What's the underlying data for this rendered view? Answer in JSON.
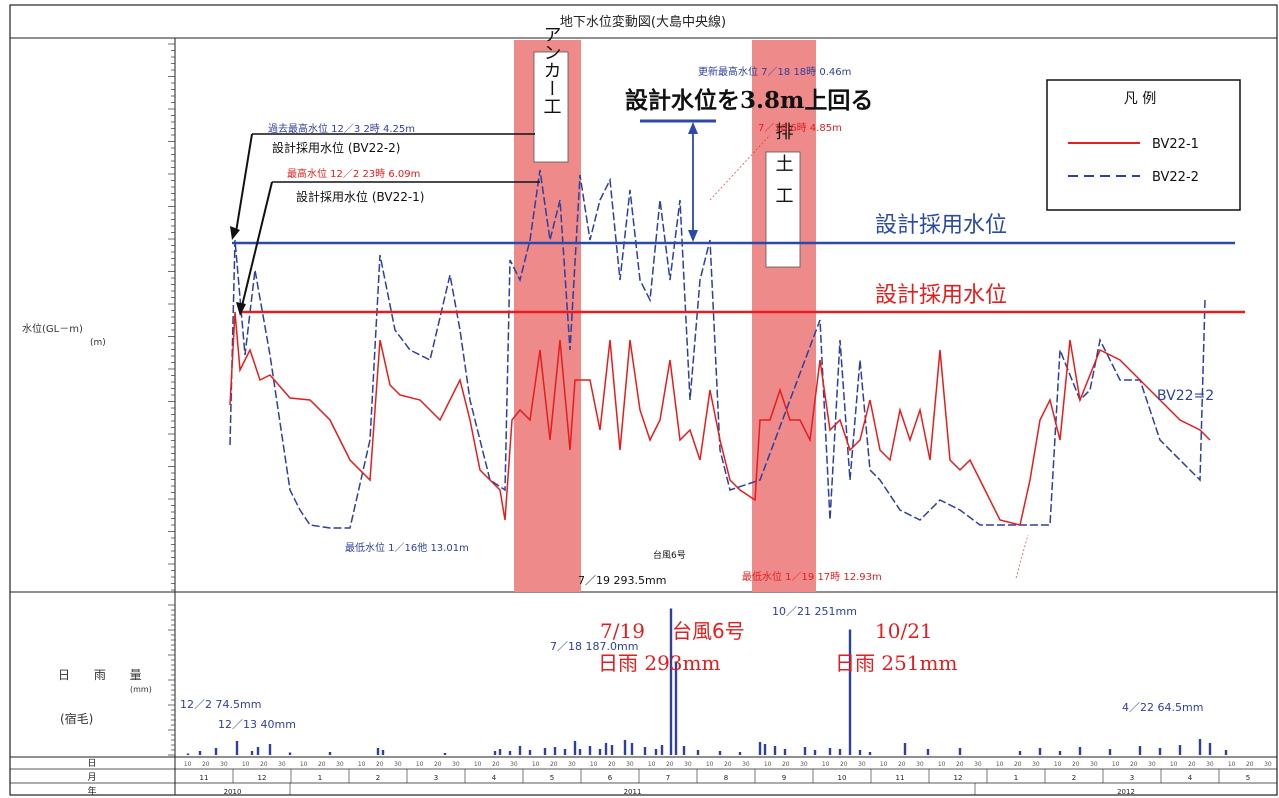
{
  "chart_data": {
    "type": "line",
    "title": "地下水位変動図(大島中央線)",
    "y_axis_label": "水位(GL－m)",
    "y_axis_unit": "(m)",
    "rain_axis_label": "日 雨 量",
    "rain_axis_unit": "(mm)",
    "rain_axis_station": "(宿毛)",
    "legend_title": "凡 例",
    "series": [
      {
        "name": "BV22-1",
        "color": "#e41e1e",
        "style": "solid"
      },
      {
        "name": "BV22-2",
        "color": "#2e3f9e",
        "style": "dashed"
      }
    ],
    "design_levels": [
      {
        "label": "設計採用水位",
        "color": "#2b4aa8"
      },
      {
        "label": "設計採用水位",
        "color": "#e41e1e"
      }
    ],
    "construction_periods": [
      "アンカー工",
      "排土工"
    ],
    "annotations": {
      "past_max_22": "過去最高水位 12／3 2時 4.25m",
      "design_22_2": "設計採用水位 (BV22-2)",
      "past_max_21": "最高水位 12／2 23時 6.09m",
      "design_22_1": "設計採用水位 (BV22-1)",
      "new_max_22": "更新最高水位 7／18 18時 0.46m",
      "new_max_21": "7／18 6時 4.85m",
      "exceed": "設計水位を3.8m上回る",
      "min_22": "最低水位 1／16他 13.01m",
      "typhoon_small": "台風6号",
      "typhoon_rain_small": "7／19 293.5mm",
      "min_21": "最低水位 1／19 17時 12.93m",
      "bv22_label": "BV22=2",
      "rain_1021_small": "10／21 251mm",
      "rain_0718": "7／18 187.0mm",
      "rain_1202": "12／2 74.5mm",
      "rain_1213": "12／13 40mm",
      "rain_0422": "4／22 64.5mm",
      "red_typhoon_date": "7/19",
      "red_typhoon_name": "台風6号",
      "red_typhoon_rain": "日雨 293mm",
      "red_1021_date": "10/21",
      "red_1021_rain": "日雨 251mm"
    },
    "table_rows": [
      "日",
      "月",
      "年"
    ],
    "months": [
      "11",
      "12",
      "1",
      "2",
      "3",
      "4",
      "5",
      "6",
      "7",
      "8",
      "9",
      "10",
      "11",
      "12",
      "1",
      "2",
      "3",
      "4",
      "5"
    ],
    "years": [
      "2010",
      "2011",
      "2012"
    ],
    "day_ticks": [
      "10",
      "20",
      "30"
    ],
    "bv22_1_x": [
      230,
      235,
      240,
      250,
      260,
      270,
      290,
      310,
      330,
      350,
      370,
      380,
      390,
      400,
      420,
      440,
      460,
      470,
      480,
      490,
      500,
      505,
      512,
      520,
      530,
      540,
      550,
      560,
      570,
      575,
      590,
      600,
      610,
      620,
      630,
      640,
      650,
      660,
      670,
      680,
      690,
      700,
      710,
      720,
      730,
      740,
      755,
      760,
      770,
      780,
      790,
      800,
      810,
      820,
      830,
      840,
      850,
      860,
      870,
      880,
      890,
      900,
      910,
      920,
      930,
      940,
      950,
      960,
      970,
      980,
      1000,
      1020,
      1030,
      1040,
      1050,
      1060,
      1070,
      1080,
      1100,
      1120,
      1140,
      1160,
      1180,
      1200,
      1210
    ],
    "bv22_1_y": [
      405,
      312,
      370,
      350,
      380,
      375,
      398,
      400,
      420,
      460,
      480,
      340,
      385,
      395,
      400,
      420,
      380,
      420,
      470,
      480,
      490,
      520,
      420,
      410,
      420,
      350,
      440,
      340,
      450,
      380,
      380,
      430,
      340,
      450,
      340,
      410,
      440,
      420,
      360,
      440,
      430,
      460,
      390,
      440,
      480,
      490,
      500,
      420,
      420,
      390,
      420,
      420,
      440,
      360,
      430,
      420,
      450,
      440,
      400,
      450,
      460,
      410,
      440,
      410,
      460,
      350,
      460,
      470,
      460,
      480,
      520,
      525,
      480,
      420,
      400,
      440,
      340,
      400,
      350,
      360,
      380,
      400,
      420,
      430,
      440
    ],
    "bv22_2_x": [
      230,
      235,
      245,
      255,
      270,
      290,
      300,
      310,
      330,
      350,
      370,
      380,
      395,
      410,
      430,
      450,
      460,
      470,
      490,
      505,
      510,
      520,
      530,
      540,
      550,
      560,
      570,
      580,
      590,
      600,
      610,
      620,
      630,
      640,
      650,
      660,
      670,
      680,
      690,
      700,
      710,
      720,
      730,
      760,
      790,
      820,
      830,
      840,
      850,
      860,
      870,
      880,
      900,
      920,
      940,
      960,
      980,
      1000,
      1030,
      1050,
      1060,
      1080,
      1090,
      1100,
      1120,
      1140,
      1160,
      1180,
      1200,
      1205
    ],
    "bv22_2_y": [
      445,
      240,
      355,
      270,
      355,
      490,
      510,
      525,
      528,
      528,
      440,
      255,
      330,
      350,
      360,
      275,
      330,
      400,
      480,
      490,
      260,
      280,
      240,
      170,
      240,
      200,
      350,
      175,
      240,
      200,
      180,
      280,
      190,
      280,
      300,
      200,
      280,
      200,
      400,
      280,
      240,
      450,
      490,
      480,
      400,
      320,
      520,
      340,
      480,
      360,
      470,
      480,
      510,
      520,
      500,
      510,
      525,
      525,
      525,
      525,
      350,
      400,
      390,
      340,
      380,
      380,
      440,
      460,
      480,
      300
    ],
    "rain_bars": [
      {
        "x": 188,
        "v": 3
      },
      {
        "x": 200,
        "v": 8
      },
      {
        "x": 216,
        "v": 14
      },
      {
        "x": 237,
        "v": 28
      },
      {
        "x": 252,
        "v": 8
      },
      {
        "x": 258,
        "v": 16
      },
      {
        "x": 270,
        "v": 22
      },
      {
        "x": 290,
        "v": 5
      },
      {
        "x": 330,
        "v": 6
      },
      {
        "x": 378,
        "v": 14
      },
      {
        "x": 383,
        "v": 10
      },
      {
        "x": 445,
        "v": 4
      },
      {
        "x": 495,
        "v": 8
      },
      {
        "x": 500,
        "v": 12
      },
      {
        "x": 510,
        "v": 8
      },
      {
        "x": 520,
        "v": 18
      },
      {
        "x": 530,
        "v": 10
      },
      {
        "x": 545,
        "v": 14
      },
      {
        "x": 555,
        "v": 16
      },
      {
        "x": 565,
        "v": 12
      },
      {
        "x": 575,
        "v": 28
      },
      {
        "x": 580,
        "v": 12
      },
      {
        "x": 590,
        "v": 18
      },
      {
        "x": 600,
        "v": 12
      },
      {
        "x": 606,
        "v": 24
      },
      {
        "x": 612,
        "v": 20
      },
      {
        "x": 625,
        "v": 30
      },
      {
        "x": 632,
        "v": 24
      },
      {
        "x": 645,
        "v": 16
      },
      {
        "x": 656,
        "v": 12
      },
      {
        "x": 662,
        "v": 20
      },
      {
        "x": 671,
        "v": 293
      },
      {
        "x": 676,
        "v": 187
      },
      {
        "x": 684,
        "v": 18
      },
      {
        "x": 698,
        "v": 10
      },
      {
        "x": 720,
        "v": 8
      },
      {
        "x": 740,
        "v": 6
      },
      {
        "x": 760,
        "v": 26
      },
      {
        "x": 765,
        "v": 22
      },
      {
        "x": 775,
        "v": 18
      },
      {
        "x": 785,
        "v": 12
      },
      {
        "x": 805,
        "v": 16
      },
      {
        "x": 815,
        "v": 10
      },
      {
        "x": 830,
        "v": 14
      },
      {
        "x": 840,
        "v": 12
      },
      {
        "x": 850,
        "v": 251
      },
      {
        "x": 860,
        "v": 10
      },
      {
        "x": 870,
        "v": 6
      },
      {
        "x": 905,
        "v": 24
      },
      {
        "x": 928,
        "v": 12
      },
      {
        "x": 960,
        "v": 14
      },
      {
        "x": 1020,
        "v": 8
      },
      {
        "x": 1040,
        "v": 14
      },
      {
        "x": 1060,
        "v": 8
      },
      {
        "x": 1080,
        "v": 16
      },
      {
        "x": 1110,
        "v": 12
      },
      {
        "x": 1140,
        "v": 18
      },
      {
        "x": 1160,
        "v": 14
      },
      {
        "x": 1180,
        "v": 20
      },
      {
        "x": 1200,
        "v": 32
      },
      {
        "x": 1210,
        "v": 24
      },
      {
        "x": 1226,
        "v": 10
      }
    ]
  }
}
